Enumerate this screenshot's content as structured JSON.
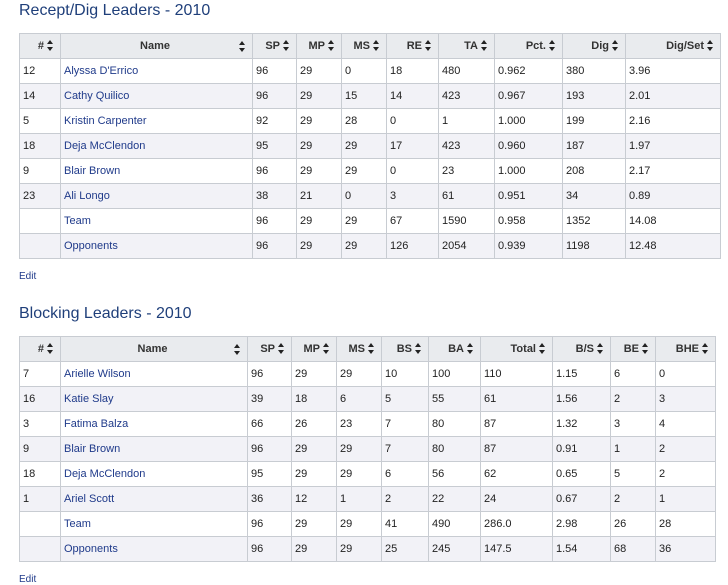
{
  "sections": [
    {
      "title": "Recept/Dig Leaders - 2010",
      "edit": "Edit",
      "columns": [
        "#",
        "Name",
        "SP",
        "MP",
        "MS",
        "RE",
        "TA",
        "Pct.",
        "Dig",
        "Dig/Set"
      ],
      "rows": [
        [
          "12",
          "Alyssa D'Errico",
          "96",
          "29",
          "0",
          "18",
          "480",
          "0.962",
          "380",
          "3.96"
        ],
        [
          "14",
          "Cathy Quilico",
          "96",
          "29",
          "15",
          "14",
          "423",
          "0.967",
          "193",
          "2.01"
        ],
        [
          "5",
          "Kristin Carpenter",
          "92",
          "29",
          "28",
          "0",
          "1",
          "1.000",
          "199",
          "2.16"
        ],
        [
          "18",
          "Deja McClendon",
          "95",
          "29",
          "29",
          "17",
          "423",
          "0.960",
          "187",
          "1.97"
        ],
        [
          "9",
          "Blair Brown",
          "96",
          "29",
          "29",
          "0",
          "23",
          "1.000",
          "208",
          "2.17"
        ],
        [
          "23",
          "Ali Longo",
          "38",
          "21",
          "0",
          "3",
          "61",
          "0.951",
          "34",
          "0.89"
        ],
        [
          "",
          "Team",
          "96",
          "29",
          "29",
          "67",
          "1590",
          "0.958",
          "1352",
          "14.08"
        ],
        [
          "",
          "Opponents",
          "96",
          "29",
          "29",
          "126",
          "2054",
          "0.939",
          "1198",
          "12.48"
        ]
      ]
    },
    {
      "title": "Blocking Leaders - 2010",
      "edit": "Edit",
      "columns": [
        "#",
        "Name",
        "SP",
        "MP",
        "MS",
        "BS",
        "BA",
        "Total",
        "B/S",
        "BE",
        "BHE"
      ],
      "rows": [
        [
          "7",
          "Arielle Wilson",
          "96",
          "29",
          "29",
          "10",
          "100",
          "110",
          "1.15",
          "6",
          "0"
        ],
        [
          "16",
          "Katie Slay",
          "39",
          "18",
          "6",
          "5",
          "55",
          "61",
          "1.56",
          "2",
          "3"
        ],
        [
          "3",
          "Fatima Balza",
          "66",
          "26",
          "23",
          "7",
          "80",
          "87",
          "1.32",
          "3",
          "4"
        ],
        [
          "9",
          "Blair Brown",
          "96",
          "29",
          "29",
          "7",
          "80",
          "87",
          "0.91",
          "1",
          "2"
        ],
        [
          "18",
          "Deja McClendon",
          "95",
          "29",
          "29",
          "6",
          "56",
          "62",
          "0.65",
          "5",
          "2"
        ],
        [
          "1",
          "Ariel Scott",
          "36",
          "12",
          "1",
          "2",
          "22",
          "24",
          "0.67",
          "2",
          "1"
        ],
        [
          "",
          "Team",
          "96",
          "29",
          "29",
          "41",
          "490",
          "286.0",
          "2.98",
          "26",
          "28"
        ],
        [
          "",
          "Opponents",
          "96",
          "29",
          "29",
          "25",
          "245",
          "147.5",
          "1.54",
          "68",
          "36"
        ]
      ]
    }
  ]
}
